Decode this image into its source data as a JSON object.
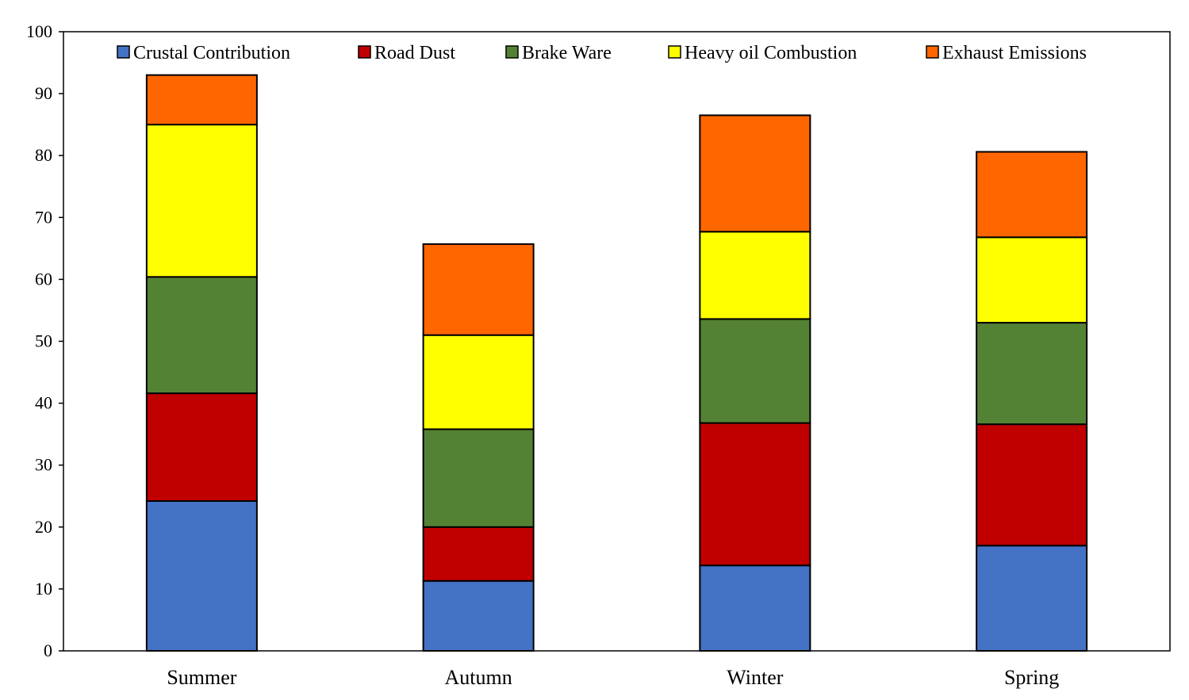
{
  "chart_data": {
    "type": "bar",
    "stacked": true,
    "title": "",
    "xlabel": "",
    "ylabel": "",
    "ylim": [
      0,
      100
    ],
    "yticks": [
      0,
      10,
      20,
      30,
      40,
      50,
      60,
      70,
      80,
      90,
      100
    ],
    "grid": false,
    "legend_position": "top",
    "categories": [
      "Summer",
      "Autumn",
      "Winter",
      "Spring"
    ],
    "series": [
      {
        "name": "Crustal Contribution",
        "color": "#4472C4",
        "values": [
          24.2,
          11.3,
          13.8,
          17.0
        ]
      },
      {
        "name": "Road Dust",
        "color": "#C00000",
        "values": [
          17.4,
          8.7,
          23.0,
          19.6
        ]
      },
      {
        "name": "Brake Ware",
        "color": "#548235",
        "values": [
          18.8,
          15.8,
          16.8,
          16.4
        ]
      },
      {
        "name": "Heavy oil Combustion",
        "color": "#FFFF00",
        "values": [
          24.6,
          15.2,
          14.1,
          13.8
        ]
      },
      {
        "name": "Exhaust Emissions",
        "color": "#FF6600",
        "values": [
          8.0,
          14.7,
          18.8,
          13.8
        ]
      }
    ]
  }
}
